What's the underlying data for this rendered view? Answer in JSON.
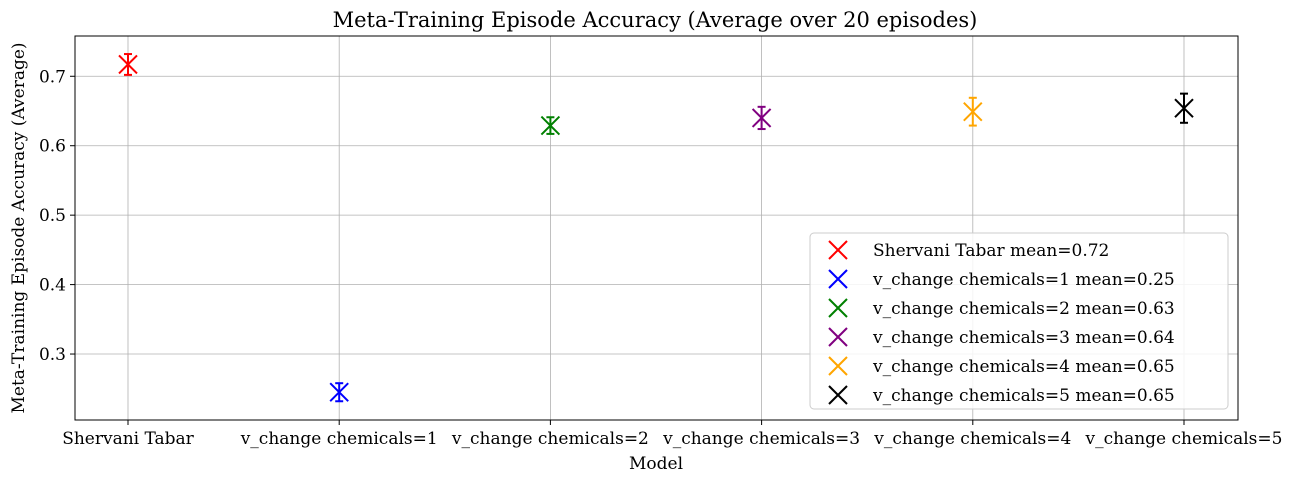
{
  "chart_data": {
    "type": "scatter",
    "title": "Meta-Training Episode Accuracy (Average over 20 episodes)",
    "xlabel": "Model",
    "ylabel": "Meta-Training Episode Accuracy (Average)",
    "categories": [
      "Shervani Tabar",
      "v_change chemicals=1",
      "v_change chemicals=2",
      "v_change chemicals=3",
      "v_change chemicals=4",
      "v_change chemicals=5"
    ],
    "series": [
      {
        "name": "Shervani Tabar mean=0.72",
        "category": "Shervani Tabar",
        "value": 0.717,
        "error": 0.015,
        "color": "#ff0000"
      },
      {
        "name": "v_change chemicals=1 mean=0.25",
        "category": "v_change chemicals=1",
        "value": 0.245,
        "error": 0.013,
        "color": "#0000ff"
      },
      {
        "name": "v_change chemicals=2 mean=0.63",
        "category": "v_change chemicals=2",
        "value": 0.629,
        "error": 0.012,
        "color": "#008000"
      },
      {
        "name": "v_change chemicals=3 mean=0.64",
        "category": "v_change chemicals=3",
        "value": 0.64,
        "error": 0.016,
        "color": "#800080"
      },
      {
        "name": "v_change chemicals=4 mean=0.65",
        "category": "v_change chemicals=4",
        "value": 0.649,
        "error": 0.02,
        "color": "#ffa500"
      },
      {
        "name": "v_change chemicals=5 mean=0.65",
        "category": "v_change chemicals=5",
        "value": 0.654,
        "error": 0.021,
        "color": "#000000"
      }
    ],
    "yticks": [
      0.3,
      0.4,
      0.5,
      0.6,
      0.7
    ],
    "ylim": [
      0.205,
      0.758
    ],
    "grid": true,
    "legend_position": "lower-right",
    "marker": "x"
  }
}
